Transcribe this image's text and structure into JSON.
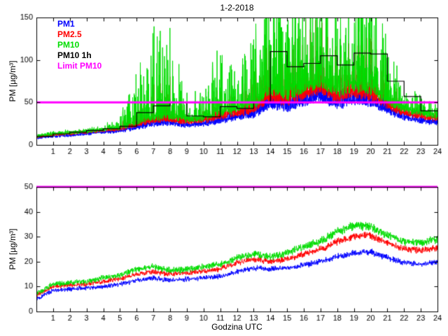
{
  "figure": {
    "background": "#ffffff",
    "axis_color": "#000000"
  },
  "chart_data": [
    {
      "type": "line",
      "title": "1-2-2018",
      "xlabel": "",
      "ylabel": "PM [µg/m³]",
      "xlim": [
        0,
        24
      ],
      "ylim": [
        0,
        150
      ],
      "xticks": [
        1,
        2,
        3,
        4,
        5,
        6,
        7,
        8,
        9,
        10,
        11,
        12,
        13,
        14,
        15,
        16,
        17,
        18,
        19,
        20,
        21,
        22,
        23,
        24
      ],
      "yticks": [
        0,
        50,
        100,
        150
      ],
      "grid": false,
      "legend_position": "top-left",
      "legend_entries": [
        "PM1",
        "PM2.5",
        "PM10",
        "PM10 1h",
        "Limit PM10"
      ],
      "series": [
        {
          "name": "PM1",
          "color": "#0000ff",
          "style": "noisy",
          "linewidth": 1,
          "jitter_frac": 0.1,
          "jitter_abs": 0.8,
          "base": [
            8,
            10,
            11,
            13,
            15,
            16,
            20,
            24,
            25,
            23,
            24,
            28,
            32,
            35,
            47,
            43,
            50,
            56,
            46,
            52,
            49,
            40,
            32,
            28,
            26
          ],
          "spike_amp": [
            1,
            1,
            1,
            1,
            2,
            4,
            15,
            25,
            28,
            9,
            8,
            20,
            10,
            30,
            45,
            40,
            55,
            60,
            45,
            48,
            50,
            28,
            6,
            7,
            5
          ]
        },
        {
          "name": "PM2.5",
          "color": "#ff0000",
          "style": "noisy",
          "linewidth": 1,
          "jitter_frac": 0.1,
          "jitter_abs": 0.8,
          "base": [
            9,
            12,
            13,
            15,
            17,
            18,
            23,
            28,
            29,
            27,
            28,
            33,
            37,
            41,
            56,
            50,
            59,
            66,
            54,
            61,
            57,
            46,
            37,
            33,
            30
          ],
          "spike_amp": [
            1,
            2,
            2,
            2,
            3,
            6,
            25,
            45,
            50,
            15,
            14,
            35,
            18,
            50,
            75,
            65,
            85,
            95,
            70,
            75,
            80,
            45,
            10,
            12,
            7
          ]
        },
        {
          "name": "PM10",
          "color": "#00dd00",
          "style": "noisy",
          "linewidth": 1,
          "jitter_frac": 0.11,
          "jitter_abs": 0.9,
          "base": [
            10,
            13,
            14,
            16,
            18,
            20,
            26,
            32,
            33,
            30,
            31,
            38,
            42,
            46,
            65,
            58,
            68,
            75,
            62,
            70,
            66,
            52,
            42,
            38,
            34
          ],
          "spike_amp": [
            2,
            3,
            3,
            3,
            4,
            15,
            60,
            110,
            110,
            35,
            30,
            90,
            40,
            100,
            130,
            110,
            140,
            145,
            120,
            125,
            130,
            80,
            20,
            25,
            12
          ]
        },
        {
          "name": "PM10 1h",
          "color": "#000000",
          "style": "step",
          "linewidth": 1.2,
          "values": [
            10,
            13,
            15,
            17,
            19,
            22,
            38,
            46,
            50,
            34,
            33,
            45,
            43,
            50,
            110,
            92,
            96,
            105,
            94,
            108,
            107,
            75,
            57,
            40
          ]
        },
        {
          "name": "Limit PM10",
          "color": "#ff00ff",
          "style": "hline",
          "linewidth": 3,
          "value": 50
        }
      ]
    },
    {
      "type": "line",
      "title": "",
      "xlabel": "Godzina UTC",
      "ylabel": "PM [µg/m³]",
      "xlim": [
        0,
        24
      ],
      "ylim": [
        0,
        50
      ],
      "xticks": [
        1,
        2,
        3,
        4,
        5,
        6,
        7,
        8,
        9,
        10,
        11,
        12,
        13,
        14,
        15,
        16,
        17,
        18,
        19,
        20,
        21,
        22,
        23,
        24
      ],
      "yticks": [
        0,
        10,
        20,
        30,
        40,
        50
      ],
      "grid": false,
      "legend_entries": [],
      "series": [
        {
          "name": "PM1",
          "color": "#0000ff",
          "style": "noisy",
          "linewidth": 1,
          "jitter_frac": 0.035,
          "jitter_abs": 0.7,
          "base": [
            5,
            8.5,
            9,
            9.5,
            10,
            11,
            12.5,
            13.5,
            12.5,
            13,
            13.5,
            14,
            16,
            17.5,
            17,
            17.5,
            18.5,
            20,
            22,
            23.5,
            24,
            21.5,
            19.5,
            19,
            20
          ]
        },
        {
          "name": "PM2.5",
          "color": "#ff0000",
          "style": "noisy",
          "linewidth": 1,
          "jitter_frac": 0.035,
          "jitter_abs": 0.7,
          "base": [
            6.5,
            10,
            10.5,
            11,
            12,
            13,
            15,
            16,
            15,
            15.5,
            16,
            17,
            19.5,
            21,
            20,
            21,
            23,
            25,
            28,
            30,
            30.5,
            27.5,
            25,
            24.5,
            25.5
          ]
        },
        {
          "name": "PM10",
          "color": "#00dd00",
          "style": "noisy",
          "linewidth": 1,
          "jitter_frac": 0.04,
          "jitter_abs": 0.8,
          "base": [
            7,
            11,
            11.5,
            12,
            13.5,
            14.5,
            17,
            18,
            16.5,
            17,
            18,
            19,
            21.5,
            23,
            22,
            23.5,
            26,
            28,
            32,
            34.5,
            34,
            30.5,
            28,
            27.5,
            29
          ]
        },
        {
          "name": "Limit PM10",
          "color": "#ff00ff",
          "style": "hline",
          "linewidth": 3,
          "value": 50
        }
      ]
    }
  ]
}
